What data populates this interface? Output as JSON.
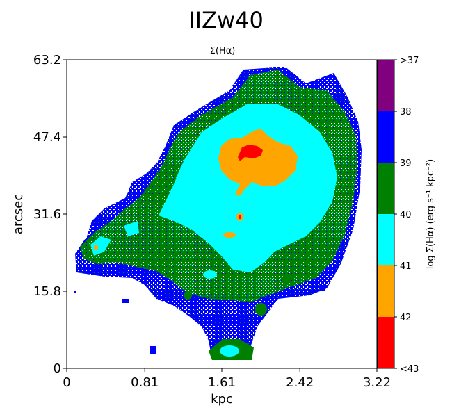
{
  "figure_title": "IIZw40",
  "chart_data": {
    "type": "heatmap",
    "title": "Σ(Hα)",
    "xlabel": "kpc",
    "ylabel": "arcsec",
    "xlim": [
      0,
      3.22
    ],
    "ylim": [
      0,
      63.2
    ],
    "xticks": [
      {
        "value": 0,
        "label": "0"
      },
      {
        "value": 0.81,
        "label": "0.81"
      },
      {
        "value": 1.61,
        "label": "1.61"
      },
      {
        "value": 2.42,
        "label": "2.42"
      },
      {
        "value": 3.22,
        "label": "3.22"
      }
    ],
    "yticks": [
      {
        "value": 0,
        "label": "0"
      },
      {
        "value": 15.8,
        "label": "15.8"
      },
      {
        "value": 31.6,
        "label": "31.6"
      },
      {
        "value": 47.4,
        "label": "47.4"
      },
      {
        "value": 63.2,
        "label": "63.2"
      }
    ],
    "grid": false,
    "background_color": "#ffffff",
    "colorbar": {
      "label": "log Σ(Hα) (erg s⁻¹ kpc⁻²)",
      "levels": [
        {
          "range": "<43",
          "color": "#ff0000"
        },
        {
          "range": "42-43",
          "color": "#ffa500"
        },
        {
          "range": "41-42",
          "color": "#00ffff"
        },
        {
          "range": "40-41",
          "color": "#008000"
        },
        {
          "range": "39-40",
          "color": "#0000ff"
        },
        {
          "range": ">38",
          "color": "#800080"
        }
      ],
      "tick_labels": [
        "<43",
        "42",
        "41",
        "40",
        "39",
        "38",
        ">37"
      ]
    },
    "regions": [
      {
        "level_color": "#0000ff",
        "description": "faint outer envelope"
      },
      {
        "level_color": "#008000",
        "description": "diffuse emission"
      },
      {
        "level_color": "#00ffff",
        "description": "inner halo"
      },
      {
        "level_color": "#ffa500",
        "description": "bright core"
      },
      {
        "level_color": "#ff0000",
        "description": "peak knot"
      }
    ]
  }
}
